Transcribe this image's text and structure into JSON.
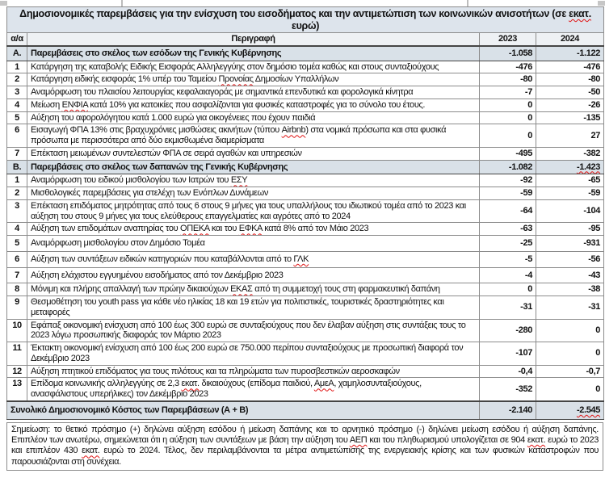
{
  "title": "Δημοσιονομικές παρεμβάσεις για την ενίσχυση του εισοδήματος και την αντιμετώπιση των κοινωνικών ανισοτήτων (σε εκατ. ευρώ)",
  "columns": {
    "index": "α/α",
    "description": "Περιγραφή",
    "year1": "2023",
    "year2": "2024"
  },
  "rows": [
    {
      "kind": "section",
      "idx": "Α.",
      "desc": "Παρεμβάσεις στο σκέλος των εσόδων της Γενικής Κυβέρνησης",
      "v2023": "-1.058",
      "v2024": "-1.122"
    },
    {
      "kind": "item",
      "idx": "1",
      "desc": "Κατάργηση της καταβολής Ειδικής Εισφοράς Αλληλεγγύης στον δημόσιο τομέα καθώς και στους συνταξιούχους",
      "v2023": "-476",
      "v2024": "-476"
    },
    {
      "kind": "item",
      "idx": "2",
      "desc": "Κατάργηση ειδικής εισφοράς 1% υπέρ του Ταμείου Προνοίας Δημοσίων Υπαλλήλων",
      "v2023": "-80",
      "v2024": "-80"
    },
    {
      "kind": "item",
      "idx": "3",
      "desc": "Αναμόρφωση του πλαισίου λειτουργίας κεφαλαιαγοράς με σημαντικά επενδυτικά και φορολογικά κίνητρα",
      "v2023": "-7",
      "v2024": "-50"
    },
    {
      "kind": "item",
      "idx": "4",
      "desc": "Μείωση ΕΝΦΙΑ κατά 10% για κατοικίες που ασφαλίζονται για φυσικές καταστροφές για το σύνολο του έτους.",
      "v2023": "0",
      "v2024": "-26"
    },
    {
      "kind": "item",
      "idx": "5",
      "desc": "Αύξηση του αφορολόγητου κατά 1.000 ευρώ για οικογένειες που έχουν παιδιά",
      "v2023": "0",
      "v2024": "-135"
    },
    {
      "kind": "item",
      "idx": "6",
      "desc": "Εισαγωγή ΦΠΑ 13% στις βραχυχρόνιες μισθώσεις ακινήτων (τύπου Airbnb) στα νομικά πρόσωπα και στα φυσικά πρόσωπα με περισσότερα από δύο εκμισθωμένα διαμερίσματα",
      "v2023": "0",
      "v2024": "27"
    },
    {
      "kind": "item",
      "idx": "7",
      "desc": "Επέκταση μειωμένων συντελεστών ΦΠΑ σε σειρά αγαθών και υπηρεσιών",
      "v2023": "-495",
      "v2024": "-382"
    },
    {
      "kind": "section",
      "idx": "Β.",
      "desc": "Παρεμβάσεις στο σκέλος των δαπανών της Γενικής Κυβέρνησης",
      "v2023": "-1.082",
      "v2024": "-1.423"
    },
    {
      "kind": "item",
      "idx": "1",
      "desc": "Αναμόρφωση του ειδικού μισθολογίου των Ιατρών του ΕΣΥ",
      "v2023": "-92",
      "v2024": "-65"
    },
    {
      "kind": "item",
      "idx": "2",
      "desc": "Μισθολογικές παρεμβάσεις για στελέχη των Ενόπλων Δυνάμεων",
      "v2023": "-59",
      "v2024": "-59"
    },
    {
      "kind": "item",
      "idx": "3",
      "desc": "Επέκταση επιδόματος μητρότητας από τους 6 στους 9 μήνες για τους υπαλλήλους του ιδιωτικού τομέα από το 2023 και αύξηση του στους 9 μήνες για τους ελεύθερους επαγγελματίες και αγρότες από το 2024",
      "v2023": "-64",
      "v2024": "-104"
    },
    {
      "kind": "item",
      "idx": "4",
      "desc": "Αύξηση των επιδομάτων αναπηρίας του ΟΠΕΚΑ και του ΕΦΚΑ κατά 8% από τον Μάιο 2023",
      "v2023": "-63",
      "v2024": "-95"
    },
    {
      "kind": "item pad",
      "idx": "5",
      "desc": "Αναμόρφωση μισθολογίου στον Δημόσιο Τομέα",
      "v2023": "-25",
      "v2024": "-931"
    },
    {
      "kind": "item pad",
      "idx": "6",
      "desc": "Αύξηση των συντάξεων ειδικών κατηγοριών που καταβάλλονται από το ΓΛΚ",
      "v2023": "-5",
      "v2024": "-56"
    },
    {
      "kind": "item pad",
      "idx": "7",
      "desc": "Αύξηση ελάχιστου εγγυημένου εισοδήματος από τον Δεκέμβριο 2023",
      "v2023": "-4",
      "v2024": "-43"
    },
    {
      "kind": "item",
      "idx": "8",
      "desc": "Μόνιμη και πλήρης απαλλαγή των πρώην δικαιούχων ΕΚΑΣ από τη συμμετοχή τους στη φαρμακευτική δαπάνη",
      "v2023": "0",
      "v2024": "-38"
    },
    {
      "kind": "item",
      "idx": "9",
      "desc": "Θεσμοθέτηση του youth pass για κάθε νέο ηλικίας 18 και 19 ετών για πολιτιστικές, τουριστικές δραστηριότητες και μεταφορές",
      "v2023": "-31",
      "v2024": "-31"
    },
    {
      "kind": "item",
      "idx": "10",
      "desc": "Εφάπαξ οικονομική ενίσχυση από 100 έως 300 ευρώ σε συνταξιούχους που δεν έλαβαν αύξηση στις συντάξεις τους το 2023 λόγω προσωπικής διαφοράς τον Μάρτιο 2023",
      "v2023": "-280",
      "v2024": "0"
    },
    {
      "kind": "item",
      "idx": "11",
      "desc": "Έκτακτη οικονομική ενίσχυση από 100 έως 200 ευρώ σε 750.000 περίπου συνταξιούχους με προσωπική διαφορά τον Δεκέμβριο 2023",
      "v2023": "-107",
      "v2024": "0"
    },
    {
      "kind": "item",
      "idx": "12",
      "desc": "Αύξηση πτητικού επιδόματος για τους πιλότους και τα πληρώματα των πυροσβεστικών αεροσκαφών",
      "v2023": "-0,4",
      "v2024": "-0,7"
    },
    {
      "kind": "item",
      "idx": "13",
      "desc": "Επίδομα κοινωνικής αλληλεγγύης σε 2,3 εκατ. δικαιούχους (επίδομα παιδιού, ΑμεΑ, χαμηλοσυνταξιούχους, ανασφάλιστους υπερήλικες) τον Δεκέμβριο 2023",
      "v2023": "-352",
      "v2024": "0"
    }
  ],
  "total_row": {
    "label": "Συνολικό Δημοσιονομικό Κόστος των Παρεμβάσεων (Α + Β)",
    "v2023": "-2.140",
    "v2024": "-2.545"
  },
  "note": "Σημείωση: το θετικό πρόσημο (+) δηλώνει αύξηση εσόδου ή μείωση δαπάνης και το αρνητικό πρόσημο (-) δηλώνει μείωση εσόδου ή αύξηση δαπάνης. Επιπλέον των ανωτέρω, σημειώνεται ότι η αύξηση των συντάξεων με βάση την αύξηση του ΑΕΠ και του πληθωρισμού υπολογίζεται σε 904 εκατ. ευρώ το 2023 και επιπλέον 430 εκατ. ευρώ το 2024. Τέλος, δεν περιλαμβάνονται τα μέτρα αντιμετώπισης της ενεργειακής κρίσης και των φυσικών καταστροφών που παρουσιάζονται στη συνέχεια.",
  "spellcheck_words": [
    "εκατ.",
    "Προνοίας",
    "ΕΝΦΙΑ",
    "Airbnb",
    "ΕΣΥ",
    "ΟΠΕΚΑ",
    "ΕΦΚΑ",
    "ΓΛΚ",
    "ΕΚΑΣ",
    "ΑμεΑ",
    "ΑΕΠ",
    "-1.423",
    "-2.545"
  ],
  "colors": {
    "title_bg": "#dde4ec",
    "header_bg": "#eef1f4",
    "section_bg": "#d9e1e8",
    "total_bg": "#d9e0e7",
    "grid_border": "#8c8c8c",
    "dark_border": "#454545",
    "spellcheck_wavy": "#e01212"
  }
}
